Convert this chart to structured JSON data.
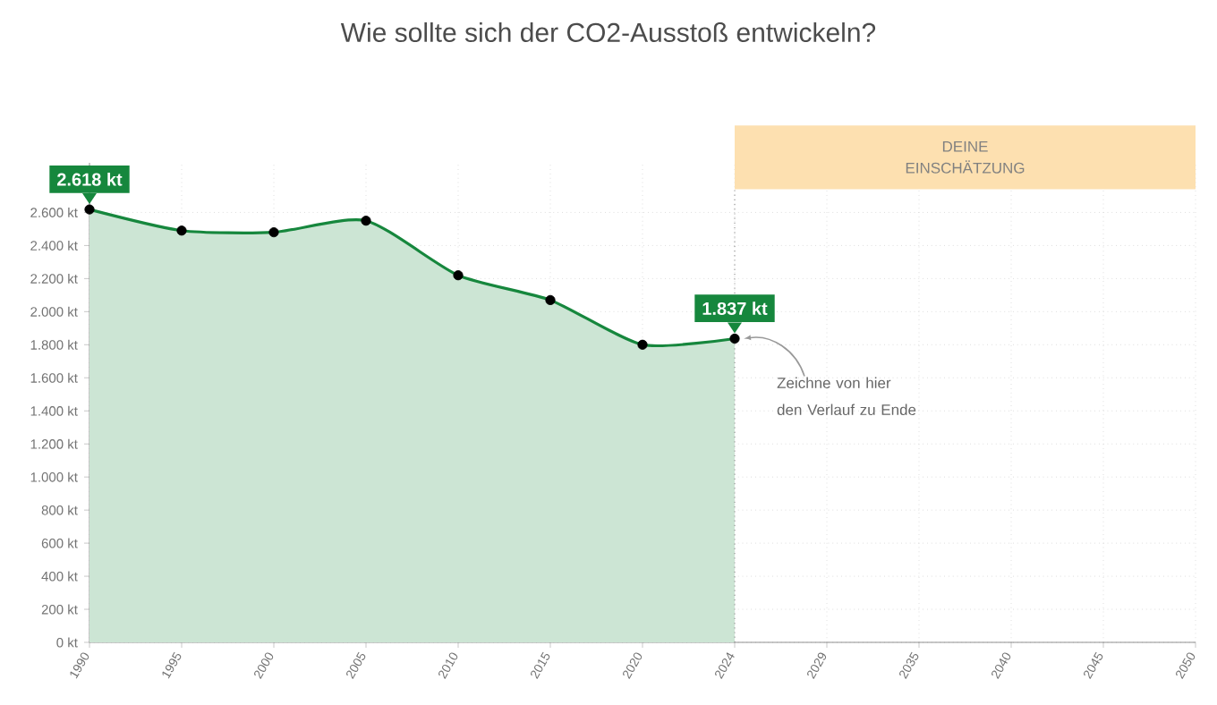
{
  "chart_data": {
    "type": "area",
    "title": "Wie sollte sich der CO2-Ausstoß entwickeln?",
    "categories": [
      "1990",
      "1995",
      "2000",
      "2005",
      "2010",
      "2015",
      "2020",
      "2024",
      "2029",
      "2035",
      "2040",
      "2045",
      "2050"
    ],
    "series": [
      {
        "color": "#16873d",
        "values": [
          2618,
          2490,
          2480,
          2550,
          2220,
          2070,
          1800,
          1837,
          null,
          null,
          null,
          null,
          null
        ]
      }
    ],
    "ylim": [
      0,
      2900
    ],
    "yticks": [
      {
        "value": 0,
        "label": "0 kt"
      },
      {
        "value": 200,
        "label": "200 kt"
      },
      {
        "value": 400,
        "label": "400 kt"
      },
      {
        "value": 600,
        "label": "600 kt"
      },
      {
        "value": 800,
        "label": "800 kt"
      },
      {
        "value": 1000,
        "label": "1.000 kt"
      },
      {
        "value": 1200,
        "label": "1.200 kt"
      },
      {
        "value": 1400,
        "label": "1.400 kt"
      },
      {
        "value": 1600,
        "label": "1.600 kt"
      },
      {
        "value": 1800,
        "label": "1.800 kt"
      },
      {
        "value": 2000,
        "label": "2.000 kt"
      },
      {
        "value": 2200,
        "label": "2.200 kt"
      },
      {
        "value": 2400,
        "label": "2.400 kt"
      },
      {
        "value": 2600,
        "label": "2.600 kt"
      }
    ],
    "annotations": [
      {
        "text": "2.618 kt",
        "x": "1990",
        "y": 2618
      },
      {
        "text": "1.837 kt",
        "x": "2024",
        "y": 1837
      },
      "Zeichne von hier den Verlauf zu Ende",
      "DEINE EINSCHÄTZUNG"
    ],
    "ref_lines": [
      {
        "axis": "x",
        "value": "2024",
        "color": "#999999",
        "line_style": "dotted"
      }
    ],
    "marker": "circle",
    "line_style": "solid",
    "grid": true
  }
}
